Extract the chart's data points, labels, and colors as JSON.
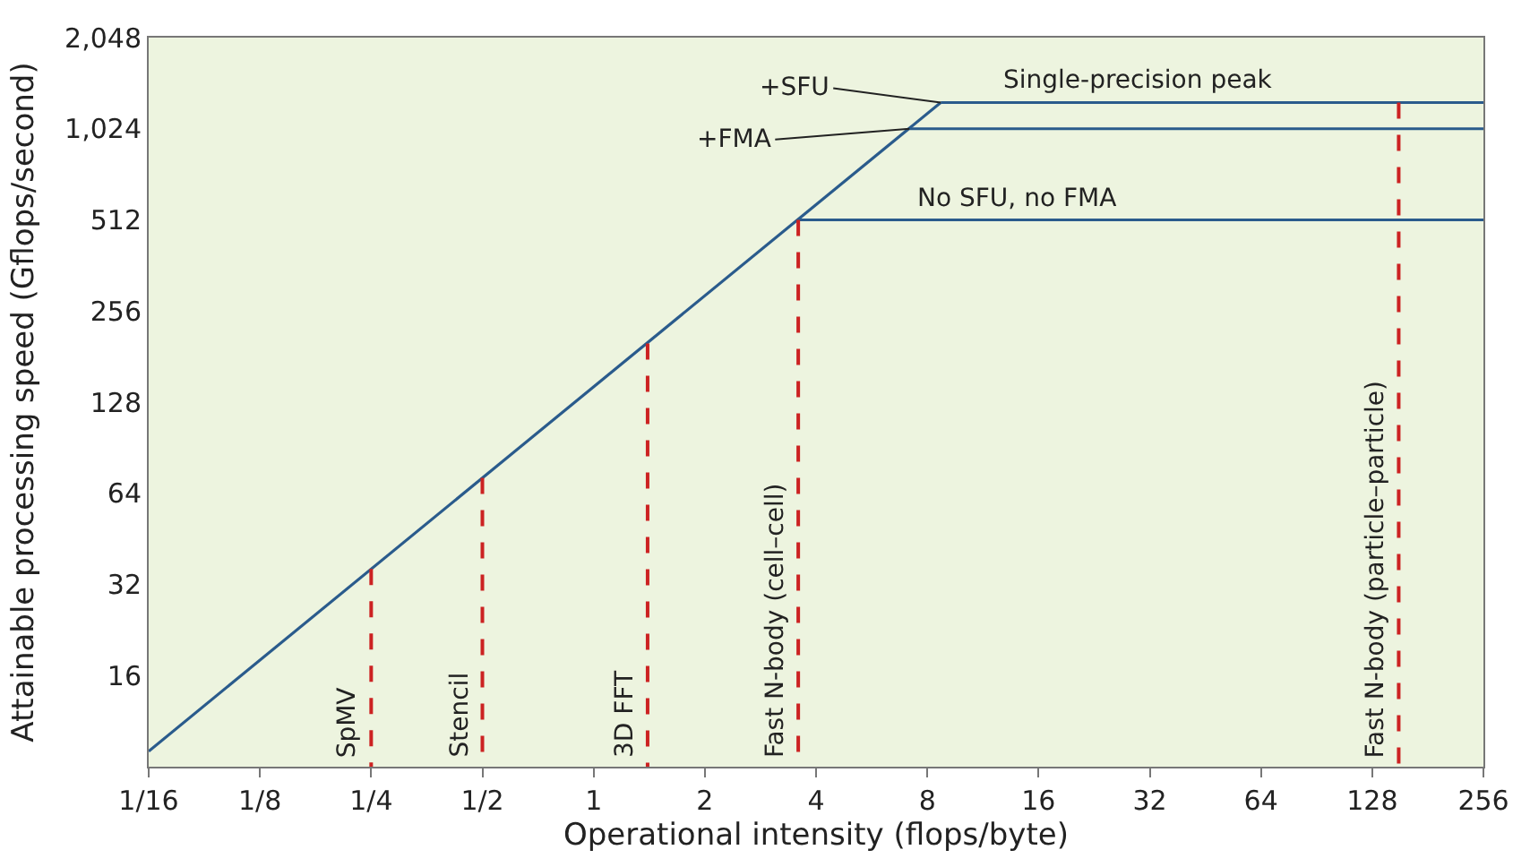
{
  "chart_data": {
    "type": "line",
    "xlabel": "Operational intensity (flops/byte)",
    "ylabel": "Attainable processing speed (Gflops/second)",
    "log": "xy",
    "grid": false,
    "marker": "none",
    "xlim": [
      0.0625,
      256
    ],
    "ylim": [
      8,
      2048
    ],
    "xticks": [
      {
        "value": 0.0625,
        "label": "1/16"
      },
      {
        "value": 0.125,
        "label": "1/8"
      },
      {
        "value": 0.25,
        "label": "1/4"
      },
      {
        "value": 0.5,
        "label": "1/2"
      },
      1,
      2,
      4,
      8,
      16,
      32,
      64,
      128,
      256
    ],
    "yticks": [
      {
        "value": 8,
        "label": null
      },
      16,
      32,
      64,
      128,
      256,
      512,
      {
        "value": 1024,
        "label": "1,024"
      },
      {
        "value": 2048,
        "label": "2,048"
      }
    ],
    "series": [
      {
        "color": "#2a5b8c",
        "x": [
          0.0625,
          8.7
        ],
        "values": [
          9,
          1250
        ],
        "line_style": "solid"
      },
      {
        "color": "#2a5b8c",
        "x": [
          3.58,
          256
        ],
        "values": [
          512,
          512
        ],
        "line_style": "solid"
      },
      {
        "color": "#2a5b8c",
        "x": [
          7.16,
          256
        ],
        "values": [
          1024,
          1024
        ],
        "line_style": "solid"
      },
      {
        "color": "#2a5b8c",
        "x": [
          8.7,
          256
        ],
        "values": [
          1250,
          1250
        ],
        "line_style": "solid"
      },
      {
        "color": "#cc2222",
        "x": [
          0.25,
          0.25
        ],
        "values": [
          36,
          8
        ],
        "line_style": "dashed"
      },
      {
        "color": "#cc2222",
        "x": [
          0.5,
          0.5
        ],
        "values": [
          72,
          8
        ],
        "line_style": "dashed"
      },
      {
        "color": "#cc2222",
        "x": [
          1.4,
          1.4
        ],
        "values": [
          200,
          8
        ],
        "line_style": "dashed"
      },
      {
        "color": "#cc2222",
        "x": [
          3.58,
          3.58
        ],
        "values": [
          512,
          8
        ],
        "line_style": "dashed"
      },
      {
        "color": "#cc2222",
        "x": [
          151,
          151
        ],
        "values": [
          1250,
          8
        ],
        "line_style": "dashed"
      }
    ],
    "annotations": [
      {
        "text": "+SFU",
        "x": 8.7,
        "y": 1250
      },
      {
        "text": "+FMA",
        "x": 7.16,
        "y": 1024
      },
      {
        "text": "Single-precision peak",
        "x": 30,
        "y": 1250
      },
      {
        "text": "No SFU, no FMA",
        "x": 14,
        "y": 512
      },
      {
        "text": "SpMV",
        "x": 0.25,
        "y": 8
      },
      {
        "text": "Stencil",
        "x": 0.5,
        "y": 8
      },
      {
        "text": "3D FFT",
        "x": 1.4,
        "y": 8
      },
      {
        "text": "Fast N-body (cell–cell)",
        "x": 3.58,
        "y": 8
      },
      {
        "text": "Fast N-body (particle–particle)",
        "x": 151,
        "y": 8
      }
    ]
  }
}
